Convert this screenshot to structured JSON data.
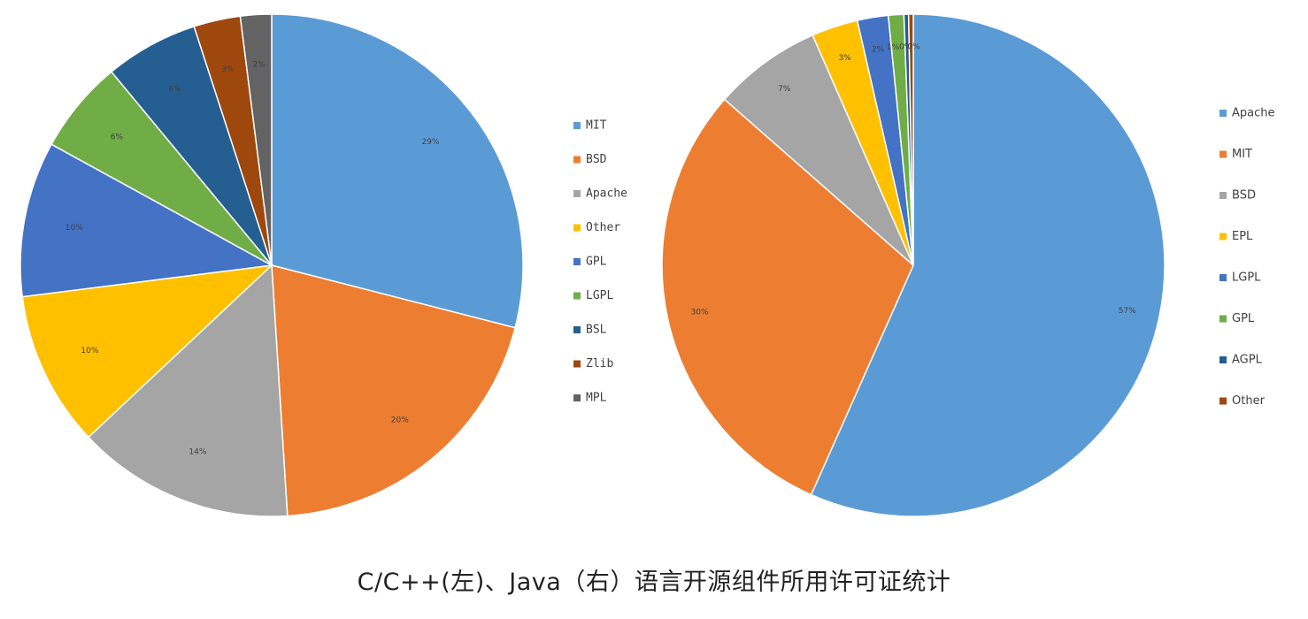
{
  "caption": "C/C++(左)、Java（右）语言开源组件所用许可证统计",
  "chart_data": [
    {
      "type": "pie",
      "title": "",
      "legend_position": "right",
      "start": "top",
      "direction": "clockwise",
      "slices": [
        {
          "name": "MIT",
          "value": 29,
          "label": "29%",
          "color": "#5B9BD5"
        },
        {
          "name": "BSD",
          "value": 20,
          "label": "20%",
          "color": "#ED7D31"
        },
        {
          "name": "Apache",
          "value": 14,
          "label": "14%",
          "color": "#A5A5A5"
        },
        {
          "name": "Other",
          "value": 10,
          "label": "10%",
          "color": "#FFC000"
        },
        {
          "name": "GPL",
          "value": 10,
          "label": "10%",
          "color": "#4472C4"
        },
        {
          "name": "LGPL",
          "value": 6,
          "label": "6%",
          "color": "#70AD47"
        },
        {
          "name": "BSL",
          "value": 6,
          "label": "6%",
          "color": "#255E91"
        },
        {
          "name": "Zlib",
          "value": 3,
          "label": "3%",
          "color": "#9E480E"
        },
        {
          "name": "MPL",
          "value": 2,
          "label": "2%",
          "color": "#636363"
        }
      ]
    },
    {
      "type": "pie",
      "title": "",
      "legend_position": "right",
      "start": "top",
      "direction": "clockwise",
      "slices": [
        {
          "name": "Apache",
          "value": 57,
          "label": "57%",
          "color": "#5B9BD5"
        },
        {
          "name": "MIT",
          "value": 30,
          "label": "30%",
          "color": "#ED7D31"
        },
        {
          "name": "BSD",
          "value": 7,
          "label": "7%",
          "color": "#A5A5A5"
        },
        {
          "name": "EPL",
          "value": 3,
          "label": "3%",
          "color": "#FFC000"
        },
        {
          "name": "LGPL",
          "value": 2,
          "label": "2%",
          "color": "#4472C4"
        },
        {
          "name": "GPL",
          "value": 1,
          "label": "1%",
          "color": "#70AD47"
        },
        {
          "name": "AGPL",
          "value": 0.3,
          "label": "0%",
          "color": "#255E91"
        },
        {
          "name": "Other",
          "value": 0.3,
          "label": "0%",
          "color": "#9E480E"
        }
      ]
    }
  ]
}
